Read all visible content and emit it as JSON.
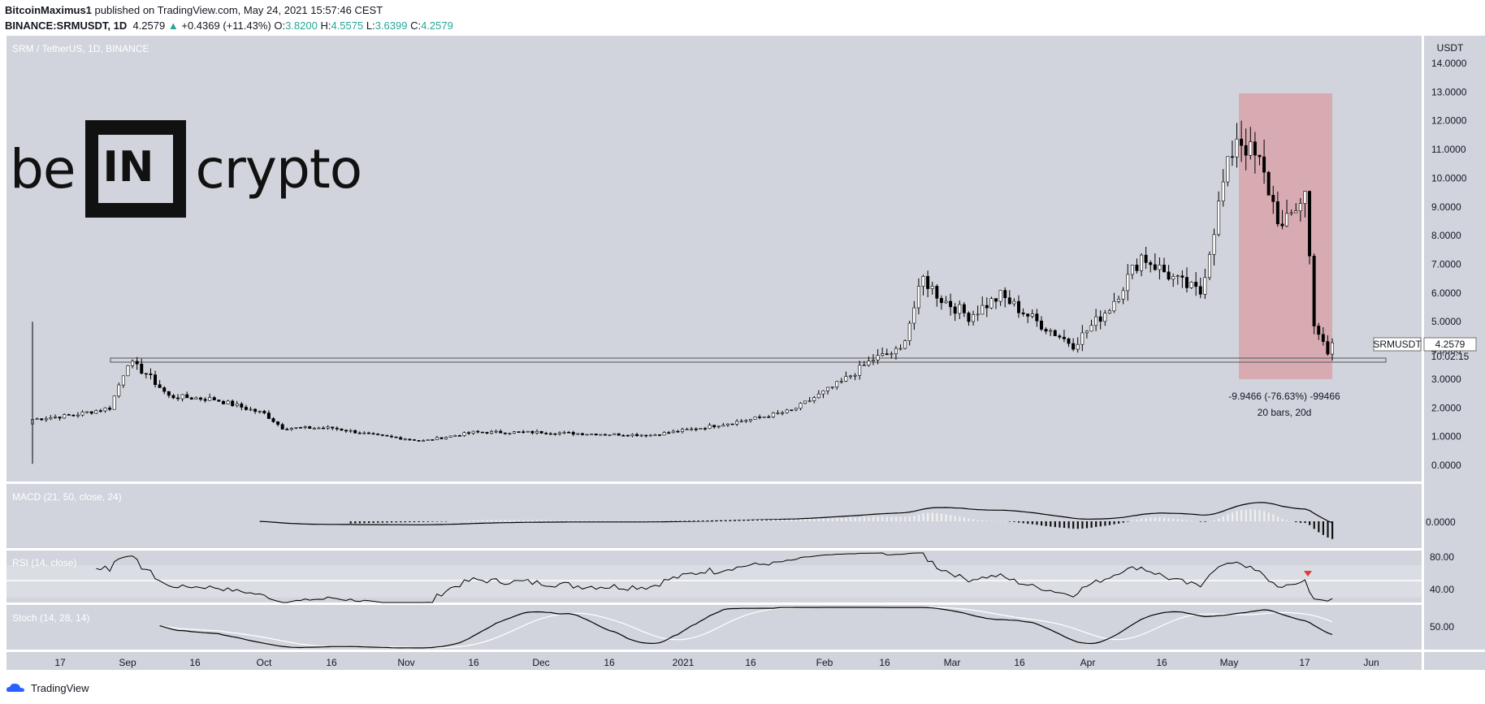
{
  "header": {
    "author": "BitcoinMaximus1",
    "published": "published on TradingView.com, May 24, 2021 15:57:46 CEST",
    "symbol": "BINANCE:SRMUSDT, 1D",
    "last": "4.2579",
    "change": "+0.4369 (+11.43%)",
    "o_label": "O:",
    "o": "3.8200",
    "h_label": "H:",
    "h": "4.5575",
    "l_label": "L:",
    "l": "3.6399",
    "c_label": "C:",
    "c": "4.2579"
  },
  "pane_titles": {
    "main": "SRM / TetherUS, 1D, BINANCE",
    "macd": "MACD (21, 50, close, 24)",
    "rsi": "RSI (14, close)",
    "stoch": "Stoch (14, 28, 14)"
  },
  "logo": {
    "left": "be",
    "box": "IN",
    "right": "crypto"
  },
  "annotation": {
    "line1": "-9.9466 (-76.63%) -99466",
    "line2": "20 bars, 20d"
  },
  "price_tag": {
    "symbol": "SRMUSDT",
    "value": "4.2579",
    "countdown": "10:02:15"
  },
  "footer": {
    "brand": "TradingView"
  },
  "colors": {
    "pane_bg": "#d1d4dc",
    "shade": "#d9a3ab",
    "up": "#26a69a",
    "rsi_marker": "#e53935"
  },
  "chart_data": {
    "type": "candlestick",
    "title": "SRM / TetherUS, 1D, BINANCE",
    "currency": "USDT",
    "y_ticks": [
      "14.0000",
      "13.0000",
      "12.0000",
      "11.0000",
      "10.0000",
      "9.0000",
      "8.0000",
      "7.0000",
      "6.0000",
      "5.0000",
      "4.0000",
      "3.0000",
      "2.0000",
      "1.0000",
      "0.0000"
    ],
    "ylim": [
      -0.6,
      14.6
    ],
    "x_labels": [
      "17",
      "Sep",
      "16",
      "Oct",
      "16",
      "Nov",
      "16",
      "Dec",
      "16",
      "2021",
      "16",
      "Feb",
      "16",
      "Mar",
      "16",
      "Apr",
      "16",
      "May",
      "17",
      "Jun"
    ],
    "support_level": 3.75,
    "close_series": [
      {
        "date": "2020-08-11",
        "close": 1.6
      },
      {
        "date": "2020-08-20",
        "close": 1.75
      },
      {
        "date": "2020-08-28",
        "close": 2.0
      },
      {
        "date": "2020-09-01",
        "close": 3.6
      },
      {
        "date": "2020-09-05",
        "close": 3.2
      },
      {
        "date": "2020-09-10",
        "close": 2.4
      },
      {
        "date": "2020-09-20",
        "close": 2.3
      },
      {
        "date": "2020-10-01",
        "close": 1.8
      },
      {
        "date": "2020-10-05",
        "close": 1.3
      },
      {
        "date": "2020-10-16",
        "close": 1.3
      },
      {
        "date": "2020-10-25",
        "close": 1.05
      },
      {
        "date": "2020-11-05",
        "close": 0.85
      },
      {
        "date": "2020-11-16",
        "close": 1.15
      },
      {
        "date": "2020-12-01",
        "close": 1.15
      },
      {
        "date": "2020-12-10",
        "close": 1.1
      },
      {
        "date": "2020-12-25",
        "close": 1.05
      },
      {
        "date": "2021-01-05",
        "close": 1.3
      },
      {
        "date": "2021-01-16",
        "close": 1.6
      },
      {
        "date": "2021-01-25",
        "close": 1.9
      },
      {
        "date": "2021-02-05",
        "close": 2.9
      },
      {
        "date": "2021-02-12",
        "close": 3.7
      },
      {
        "date": "2021-02-18",
        "close": 4.0
      },
      {
        "date": "2021-02-23",
        "close": 6.5
      },
      {
        "date": "2021-02-27",
        "close": 5.8
      },
      {
        "date": "2021-03-05",
        "close": 5.2
      },
      {
        "date": "2021-03-12",
        "close": 5.9
      },
      {
        "date": "2021-03-20",
        "close": 5.0
      },
      {
        "date": "2021-03-28",
        "close": 4.2
      },
      {
        "date": "2021-04-05",
        "close": 5.5
      },
      {
        "date": "2021-04-12",
        "close": 7.3
      },
      {
        "date": "2021-04-20",
        "close": 6.4
      },
      {
        "date": "2021-04-25",
        "close": 6.0
      },
      {
        "date": "2021-04-30",
        "close": 9.8
      },
      {
        "date": "2021-05-03",
        "close": 11.5
      },
      {
        "date": "2021-05-08",
        "close": 10.5
      },
      {
        "date": "2021-05-13",
        "close": 8.2
      },
      {
        "date": "2021-05-18",
        "close": 9.5
      },
      {
        "date": "2021-05-20",
        "close": 5.0
      },
      {
        "date": "2021-05-23",
        "close": 3.8
      },
      {
        "date": "2021-05-24",
        "close": 4.2579
      }
    ],
    "measured_move": {
      "from_date": "2021-05-04",
      "to_date": "2021-05-24",
      "high": 12.98,
      "low": 3.03
    },
    "macd_ticks": [
      "0.0000"
    ],
    "rsi_ticks": [
      "80.00",
      "40.00"
    ],
    "stoch_ticks": [
      "50.00"
    ]
  }
}
